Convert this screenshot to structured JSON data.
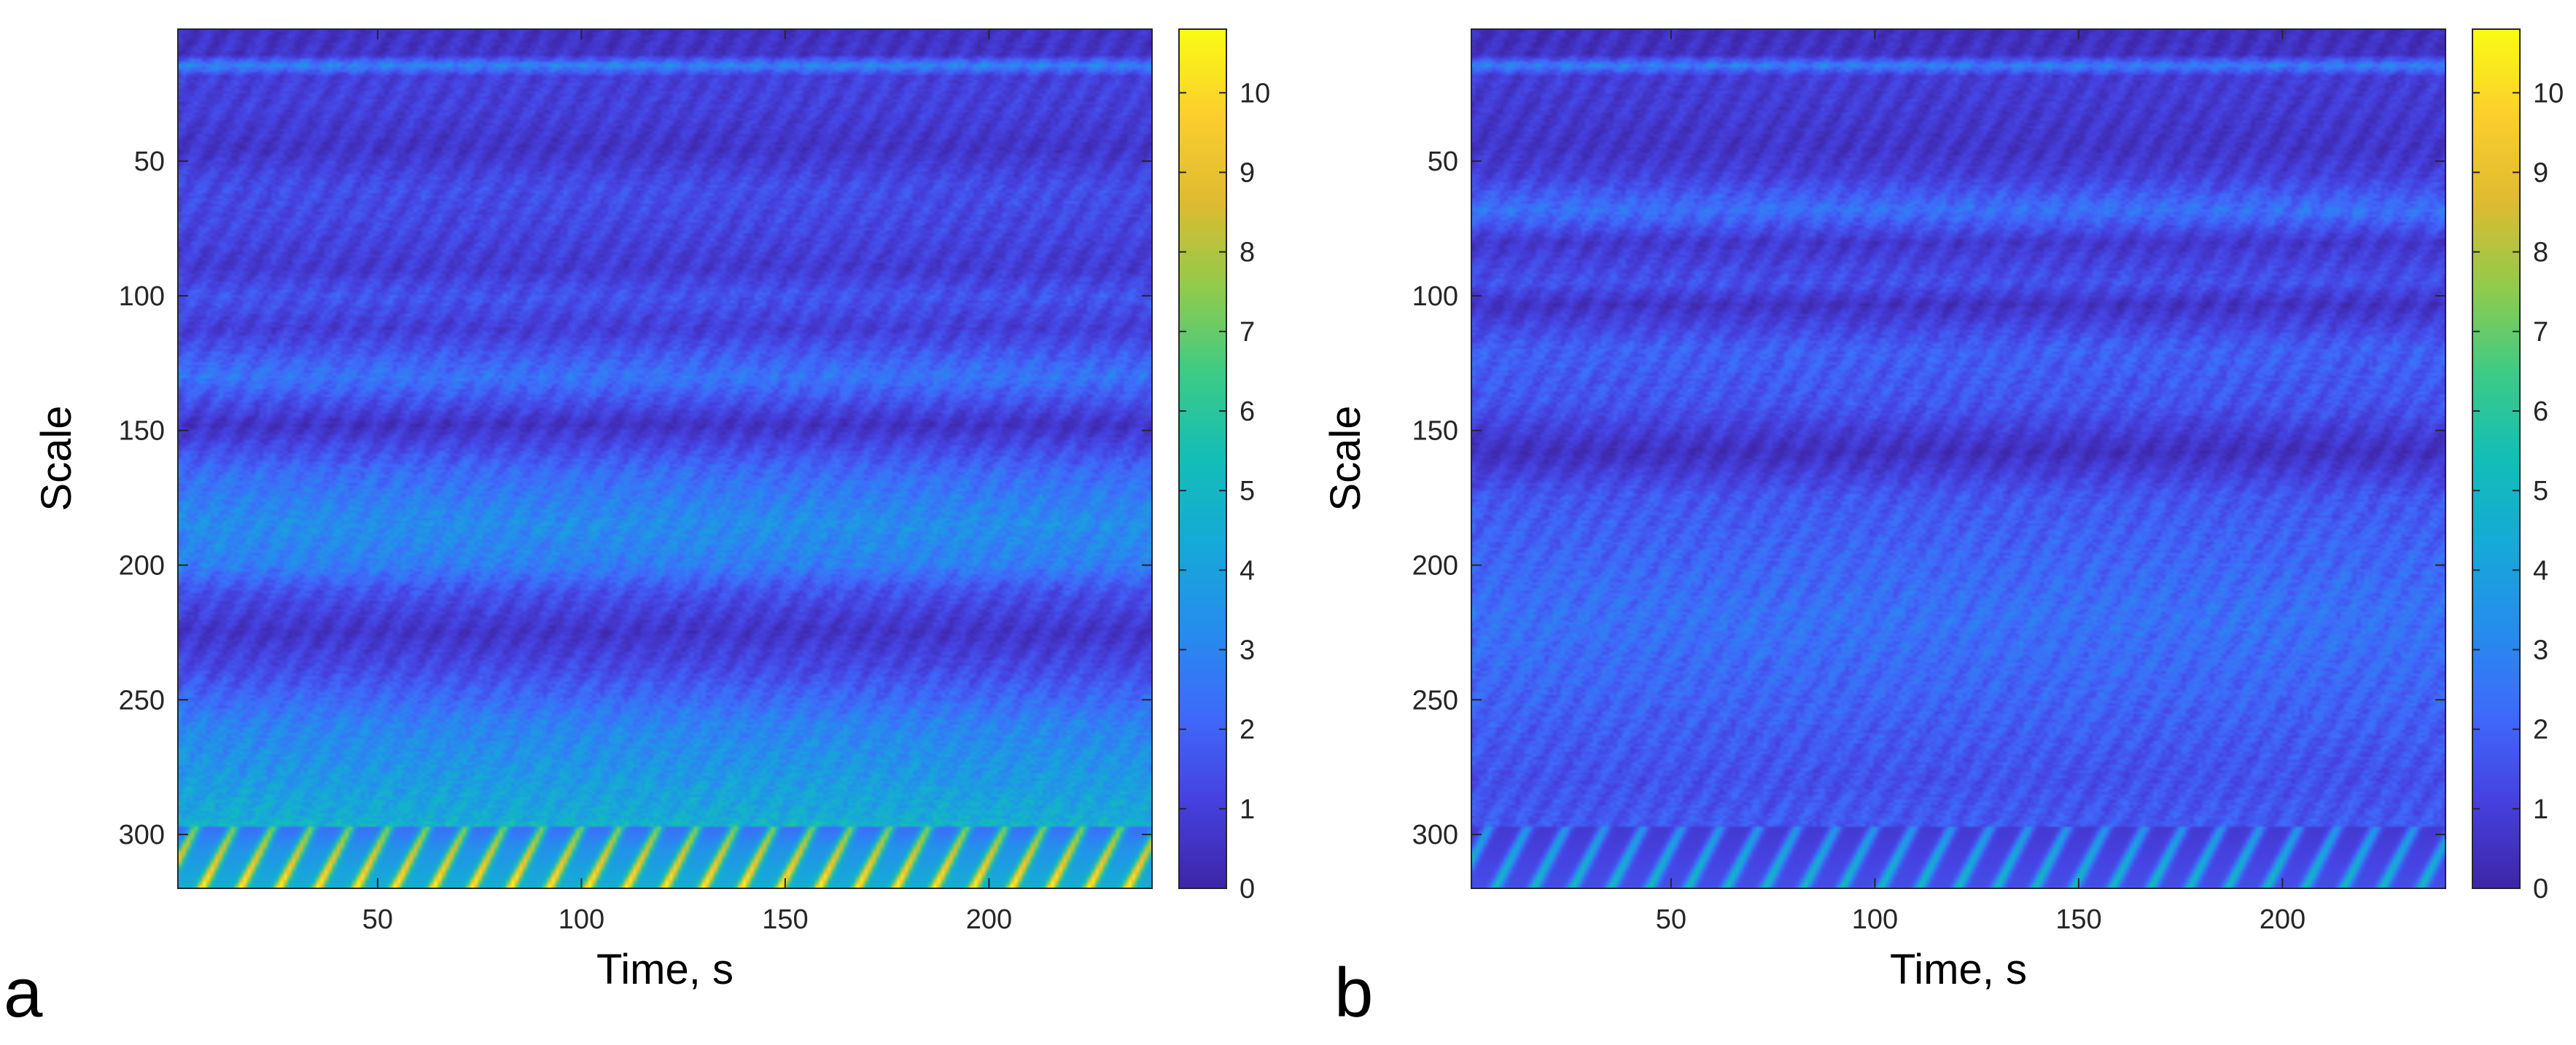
{
  "chart_data": [
    {
      "type": "heatmap",
      "panel": "a",
      "xlabel": "Time, s",
      "ylabel": "Scale",
      "xlim": [
        1,
        240
      ],
      "ylim": [
        1,
        320
      ],
      "y_reversed": true,
      "xticks": [
        50,
        100,
        150,
        200
      ],
      "yticks": [
        50,
        100,
        150,
        200,
        250,
        300
      ],
      "colorbar": {
        "min": 0,
        "max": 10.8,
        "ticks": [
          0,
          1,
          2,
          3,
          4,
          5,
          6,
          7,
          8,
          9,
          10
        ],
        "colormap": "parula"
      },
      "row_profile": [
        {
          "scale": 0,
          "value": 0.5
        },
        {
          "scale": 10,
          "value": 0.6
        },
        {
          "scale": 14,
          "value": 3.0
        },
        {
          "scale": 18,
          "value": 1.0
        },
        {
          "scale": 30,
          "value": 1.0
        },
        {
          "scale": 45,
          "value": 0.6
        },
        {
          "scale": 60,
          "value": 1.4
        },
        {
          "scale": 75,
          "value": 1.2
        },
        {
          "scale": 90,
          "value": 0.8
        },
        {
          "scale": 100,
          "value": 1.6
        },
        {
          "scale": 112,
          "value": 0.9
        },
        {
          "scale": 130,
          "value": 2.5
        },
        {
          "scale": 148,
          "value": 0.5
        },
        {
          "scale": 165,
          "value": 2.2
        },
        {
          "scale": 185,
          "value": 3.3
        },
        {
          "scale": 200,
          "value": 2.8
        },
        {
          "scale": 210,
          "value": 1.5
        },
        {
          "scale": 225,
          "value": 0.6
        },
        {
          "scale": 240,
          "value": 1.4
        },
        {
          "scale": 260,
          "value": 3.0
        },
        {
          "scale": 280,
          "value": 3.8
        },
        {
          "scale": 295,
          "value": 4.5
        },
        {
          "scale": 305,
          "value": 6.5
        },
        {
          "scale": 320,
          "value": 7.0
        }
      ],
      "burst_period_s": 9.5,
      "burst_band": [
        298,
        320
      ],
      "burst_peak": 9.5
    },
    {
      "type": "heatmap",
      "panel": "b",
      "xlabel": "Time, s",
      "ylabel": "Scale",
      "xlim": [
        1,
        240
      ],
      "ylim": [
        1,
        320
      ],
      "y_reversed": true,
      "xticks": [
        50,
        100,
        150,
        200
      ],
      "yticks": [
        50,
        100,
        150,
        200,
        250,
        300
      ],
      "colorbar": {
        "min": 0,
        "max": 10.8,
        "ticks": [
          0,
          1,
          2,
          3,
          4,
          5,
          6,
          7,
          8,
          9,
          10
        ],
        "colormap": "parula"
      },
      "row_profile": [
        {
          "scale": 0,
          "value": 0.4
        },
        {
          "scale": 10,
          "value": 0.5
        },
        {
          "scale": 14,
          "value": 2.8
        },
        {
          "scale": 18,
          "value": 0.9
        },
        {
          "scale": 30,
          "value": 0.8
        },
        {
          "scale": 45,
          "value": 0.6
        },
        {
          "scale": 55,
          "value": 1.0
        },
        {
          "scale": 68,
          "value": 2.4
        },
        {
          "scale": 80,
          "value": 0.7
        },
        {
          "scale": 95,
          "value": 1.5
        },
        {
          "scale": 103,
          "value": 0.5
        },
        {
          "scale": 120,
          "value": 1.9
        },
        {
          "scale": 140,
          "value": 1.6
        },
        {
          "scale": 158,
          "value": 0.4
        },
        {
          "scale": 175,
          "value": 1.7
        },
        {
          "scale": 200,
          "value": 2.1
        },
        {
          "scale": 220,
          "value": 2.4
        },
        {
          "scale": 250,
          "value": 2.0
        },
        {
          "scale": 280,
          "value": 1.5
        },
        {
          "scale": 300,
          "value": 1.8
        },
        {
          "scale": 320,
          "value": 2.2
        }
      ],
      "burst_period_s": 9.5,
      "burst_band": [
        298,
        320
      ],
      "burst_peak": 5.0
    }
  ]
}
